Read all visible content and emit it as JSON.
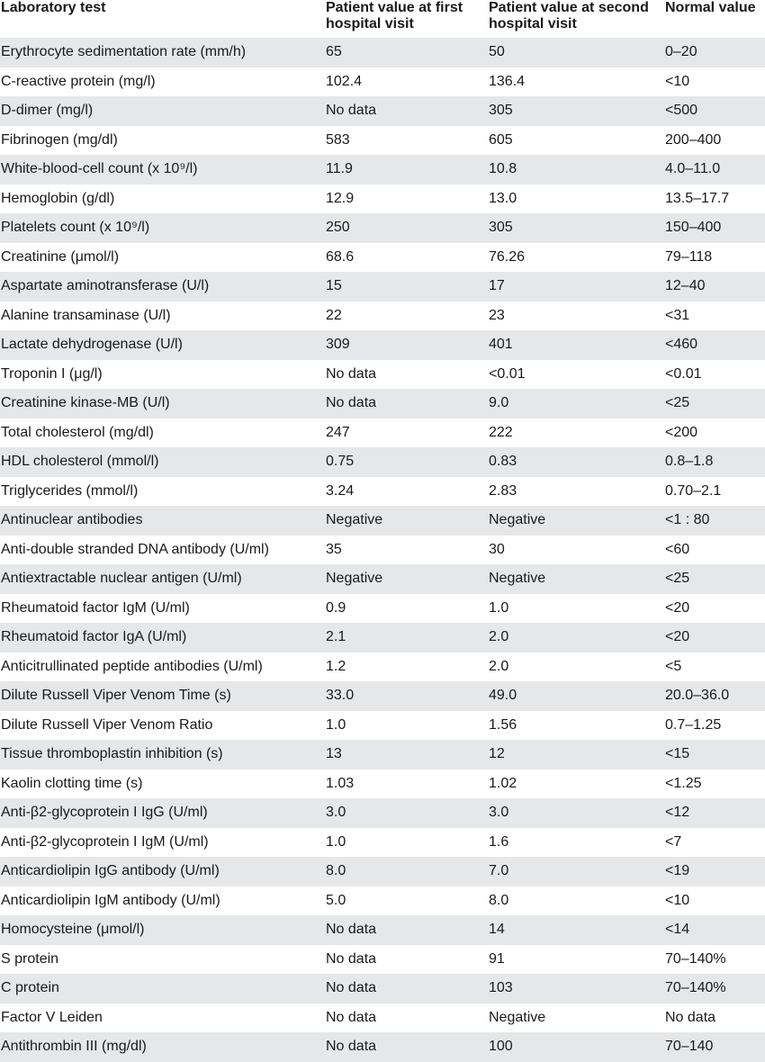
{
  "headers": {
    "test": "Laboratory test",
    "first": "Patient value at first hospital visit",
    "second": "Patient value at second hospital visit",
    "normal": "Normal value"
  },
  "rows": [
    {
      "test": "Erythrocyte sedimentation rate (mm/h)",
      "first": "65",
      "second": "50",
      "normal": "0–20"
    },
    {
      "test": "C-reactive protein (mg/l)",
      "first": "102.4",
      "second": "136.4",
      "normal": "<10"
    },
    {
      "test": "D-dimer (mg/l)",
      "first": "No data",
      "second": "305",
      "normal": "<500"
    },
    {
      "test": "Fibrinogen (mg/dl)",
      "first": "583",
      "second": "605",
      "normal": "200–400"
    },
    {
      "test": "White-blood-cell count (x 10⁹/l)",
      "first": "11.9",
      "second": "10.8",
      "normal": "4.0–11.0"
    },
    {
      "test": "Hemoglobin (g/dl)",
      "first": "12.9",
      "second": "13.0",
      "normal": "13.5–17.7"
    },
    {
      "test": "Platelets count (x 10⁹/l)",
      "first": "250",
      "second": "305",
      "normal": "150–400"
    },
    {
      "test": "Creatinine (μmol/l)",
      "first": "68.6",
      "second": "76.26",
      "normal": "79–118"
    },
    {
      "test": "Aspartate aminotransferase (U/l)",
      "first": "15",
      "second": "17",
      "normal": "12–40"
    },
    {
      "test": "Alanine transaminase (U/l)",
      "first": "22",
      "second": "23",
      "normal": "<31"
    },
    {
      "test": "Lactate dehydrogenase (U/l)",
      "first": "309",
      "second": "401",
      "normal": "<460"
    },
    {
      "test": "Troponin I (μg/l)",
      "first": "No data",
      "second": "<0.01",
      "normal": "<0.01"
    },
    {
      "test": "Creatinine kinase-MB (U/l)",
      "first": "No data",
      "second": "9.0",
      "normal": "<25"
    },
    {
      "test": "Total cholesterol (mg/dl)",
      "first": "247",
      "second": "222",
      "normal": "<200"
    },
    {
      "test": "HDL cholesterol (mmol/l)",
      "first": "0.75",
      "second": "0.83",
      "normal": "0.8–1.8"
    },
    {
      "test": "Triglycerides (mmol/l)",
      "first": "3.24",
      "second": "2.83",
      "normal": "0.70–2.1"
    },
    {
      "test": "Antinuclear antibodies",
      "first": "Negative",
      "second": "Negative",
      "normal": "<1 : 80"
    },
    {
      "test": "Anti-double stranded DNA antibody (U/ml)",
      "first": "35",
      "second": "30",
      "normal": "<60"
    },
    {
      "test": "Antiextractable nuclear antigen (U/ml)",
      "first": "Negative",
      "second": "Negative",
      "normal": "<25"
    },
    {
      "test": "Rheumatoid factor IgM (U/ml)",
      "first": "0.9",
      "second": "1.0",
      "normal": "<20"
    },
    {
      "test": "Rheumatoid factor IgA (U/ml)",
      "first": "2.1",
      "second": "2.0",
      "normal": "<20"
    },
    {
      "test": "Anticitrullinated peptide antibodies (U/ml)",
      "first": "1.2",
      "second": "2.0",
      "normal": "<5"
    },
    {
      "test": "Dilute Russell Viper Venom Time (s)",
      "first": "33.0",
      "second": "49.0",
      "normal": "20.0–36.0"
    },
    {
      "test": "Dilute Russell Viper Venom Ratio",
      "first": "1.0",
      "second": "1.56",
      "normal": "0.7–1.25"
    },
    {
      "test": "Tissue thromboplastin inhibition (s)",
      "first": "13",
      "second": "12",
      "normal": "<15"
    },
    {
      "test": "Kaolin clotting time (s)",
      "first": "1.03",
      "second": "1.02",
      "normal": "<1.25"
    },
    {
      "test": "Anti-β2-glycoprotein I IgG (U/ml)",
      "first": "3.0",
      "second": "3.0",
      "normal": "<12"
    },
    {
      "test": "Anti-β2-glycoprotein I IgM (U/ml)",
      "first": "1.0",
      "second": "1.6",
      "normal": "<7"
    },
    {
      "test": "Anticardiolipin IgG antibody (U/ml)",
      "first": "8.0",
      "second": "7.0",
      "normal": "<19"
    },
    {
      "test": "Anticardiolipin IgM antibody (U/ml)",
      "first": "5.0",
      "second": "8.0",
      "normal": "<10"
    },
    {
      "test": "Homocysteine (μmol/l)",
      "first": "No data",
      "second": "14",
      "normal": "<14"
    },
    {
      "test": "S protein",
      "first": "No data",
      "second": "91",
      "normal": "70–140%"
    },
    {
      "test": "C protein",
      "first": "No data",
      "second": "103",
      "normal": "70–140%"
    },
    {
      "test": "Factor V Leiden",
      "first": "No data",
      "second": "Negative",
      "normal": "No data"
    },
    {
      "test": "Antithrombin III (mg/dl)",
      "first": "No data",
      "second": "100",
      "normal": "70–140"
    }
  ]
}
